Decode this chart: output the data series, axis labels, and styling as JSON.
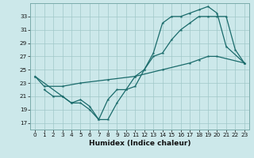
{
  "bg_color": "#cce8ea",
  "grid_color": "#a0c8c8",
  "line_color": "#1a6b6b",
  "xlabel": "Humidex (Indice chaleur)",
  "xlim": [
    -0.5,
    23.5
  ],
  "ylim": [
    16,
    35
  ],
  "yticks": [
    17,
    19,
    21,
    23,
    25,
    27,
    29,
    31,
    33
  ],
  "xticks": [
    0,
    1,
    2,
    3,
    4,
    5,
    6,
    7,
    8,
    9,
    10,
    11,
    12,
    13,
    14,
    15,
    16,
    17,
    18,
    19,
    20,
    21,
    22,
    23
  ],
  "line1_x": [
    0,
    1,
    3,
    5,
    8,
    11,
    14,
    17,
    18,
    19,
    20,
    23
  ],
  "line1_y": [
    24,
    22.5,
    22.5,
    23,
    23.5,
    24,
    25,
    26,
    26.5,
    27,
    27,
    26
  ],
  "line2_x": [
    0,
    3,
    4,
    5,
    6,
    7,
    8,
    9,
    10,
    11,
    12,
    13,
    14,
    15,
    16,
    17,
    18,
    19,
    20,
    21,
    22,
    23
  ],
  "line2_y": [
    24,
    21,
    20,
    20,
    19,
    17.5,
    17.5,
    20,
    22,
    24,
    25,
    27,
    27.5,
    29.5,
    31,
    32,
    33,
    33,
    33,
    33,
    28,
    26
  ],
  "line3_x": [
    1,
    2,
    3,
    4,
    5,
    6,
    7,
    8,
    9,
    10,
    11,
    12,
    13,
    14,
    15,
    16,
    17,
    18,
    19,
    20,
    21,
    23
  ],
  "line3_y": [
    22,
    21,
    21,
    20,
    20.5,
    19.5,
    17.5,
    20.5,
    22,
    22,
    22.5,
    25,
    27.5,
    32,
    33,
    33,
    33.5,
    34,
    34.5,
    33.5,
    28.5,
    26
  ]
}
